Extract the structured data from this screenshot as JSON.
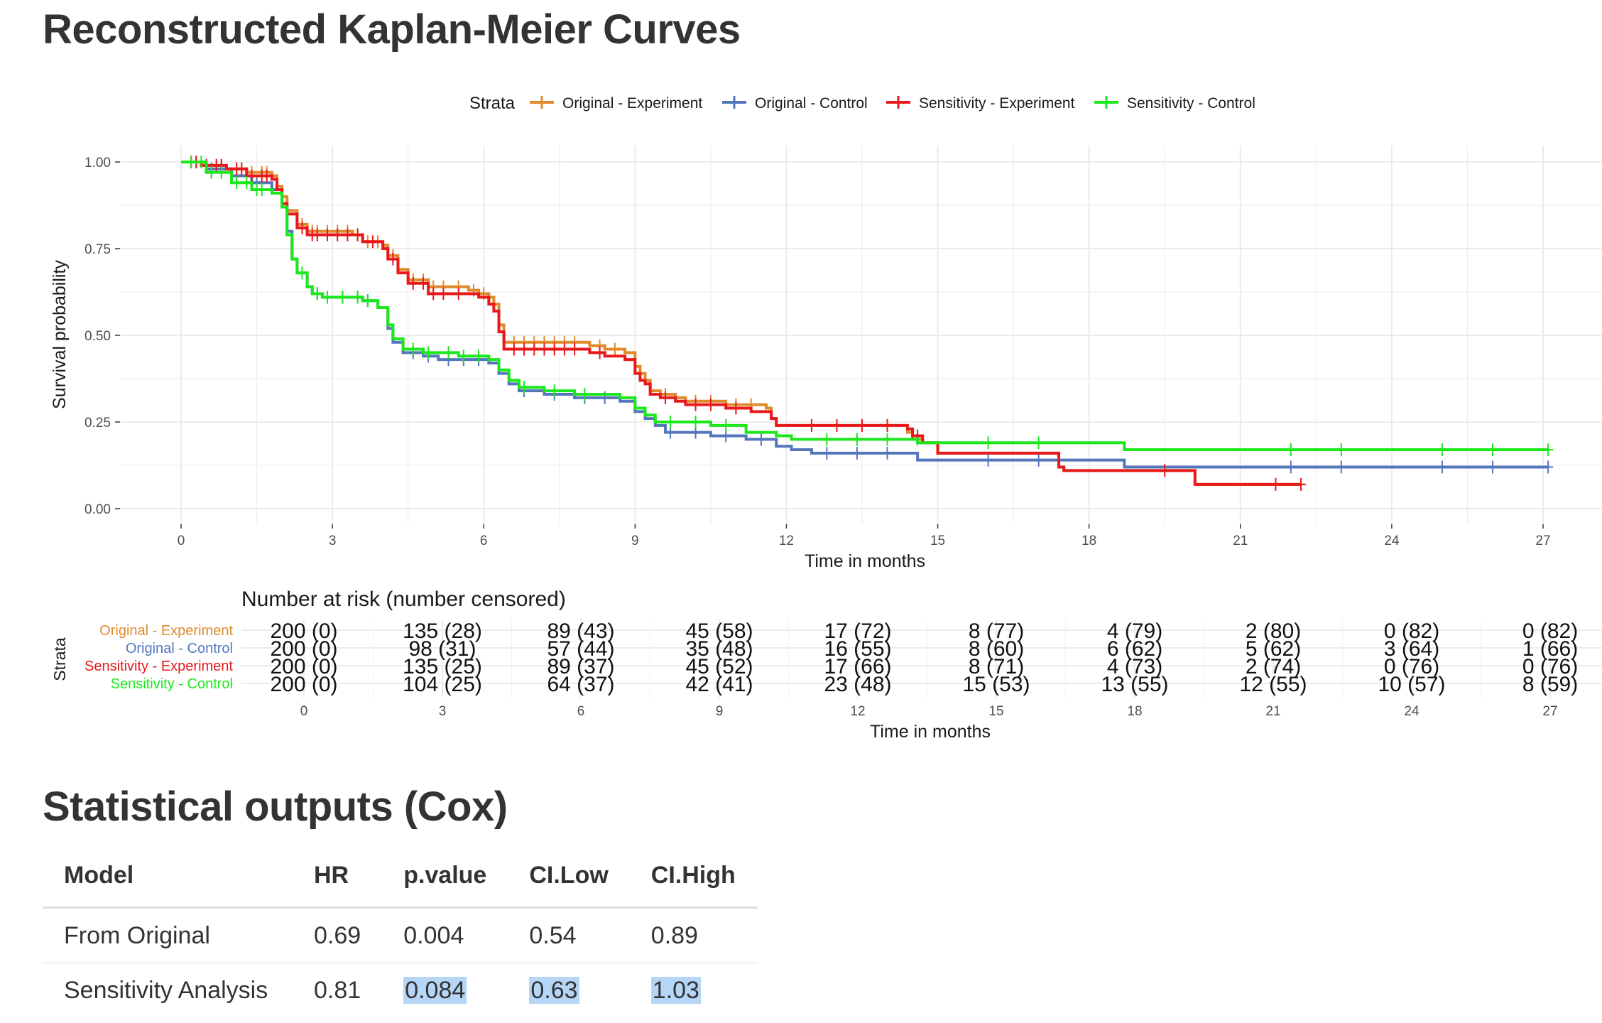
{
  "title": "Reconstructed Kaplan-Meier Curves",
  "legend": {
    "title": "Strata",
    "items": [
      "Original - Experiment",
      "Original - Control",
      "Sensitivity - Experiment",
      "Sensitivity - Control"
    ]
  },
  "colors": {
    "original_experiment": "#E08A2C",
    "original_control": "#5477BC",
    "sensitivity_experiment": "#E8191B",
    "sensitivity_control": "#1BE81B"
  },
  "chart_data": [
    {
      "type": "line",
      "subtype": "kaplan-meier step",
      "xlabel": "Time in months",
      "ylabel": "Survival probability",
      "xlim": [
        0,
        27
      ],
      "ylim": [
        0,
        1
      ],
      "x_ticks": [
        "0",
        "3",
        "6",
        "9",
        "12",
        "15",
        "18",
        "21",
        "24",
        "27"
      ],
      "y_ticks": [
        "0.00",
        "0.25",
        "0.50",
        "0.75",
        "1.00"
      ],
      "grid": true,
      "legend_position": "top",
      "series": [
        {
          "name": "Original - Experiment",
          "steps": [
            [
              0,
              1.0
            ],
            [
              0.4,
              0.99
            ],
            [
              0.9,
              0.98
            ],
            [
              1.3,
              0.97
            ],
            [
              1.8,
              0.96
            ],
            [
              1.9,
              0.93
            ],
            [
              2.0,
              0.9
            ],
            [
              2.1,
              0.86
            ],
            [
              2.3,
              0.82
            ],
            [
              2.5,
              0.8
            ],
            [
              3.4,
              0.79
            ],
            [
              3.6,
              0.77
            ],
            [
              4.0,
              0.76
            ],
            [
              4.1,
              0.73
            ],
            [
              4.3,
              0.69
            ],
            [
              4.5,
              0.66
            ],
            [
              4.9,
              0.64
            ],
            [
              5.7,
              0.63
            ],
            [
              5.9,
              0.62
            ],
            [
              6.1,
              0.61
            ],
            [
              6.2,
              0.59
            ],
            [
              6.3,
              0.53
            ],
            [
              6.4,
              0.48
            ],
            [
              8.1,
              0.47
            ],
            [
              8.4,
              0.46
            ],
            [
              8.8,
              0.45
            ],
            [
              9.0,
              0.41
            ],
            [
              9.1,
              0.39
            ],
            [
              9.2,
              0.37
            ],
            [
              9.3,
              0.34
            ],
            [
              9.5,
              0.33
            ],
            [
              9.8,
              0.32
            ],
            [
              10.0,
              0.31
            ],
            [
              10.8,
              0.3
            ],
            [
              11.6,
              0.29
            ],
            [
              11.7,
              0.26
            ],
            [
              11.8,
              0.24
            ],
            [
              14.4,
              0.22
            ],
            [
              14.5,
              0.2
            ],
            [
              14.7,
              0.19
            ],
            [
              15.0,
              0.16
            ],
            [
              17.4,
              0.12
            ],
            [
              17.5,
              0.11
            ],
            [
              20.1,
              0.07
            ]
          ],
          "end": 22.2,
          "censor_times": [
            0.2,
            0.3,
            0.5,
            0.7,
            0.8,
            1.1,
            1.2,
            1.4,
            1.6,
            1.7,
            2.4,
            2.6,
            2.7,
            2.9,
            3.1,
            3.3,
            3.5,
            3.7,
            3.9,
            4.2,
            4.6,
            4.8,
            5.0,
            5.2,
            5.5,
            5.8,
            6.0,
            6.6,
            6.8,
            7.0,
            7.2,
            7.4,
            7.6,
            7.8,
            8.3,
            8.6,
            9.6,
            10.2,
            10.5,
            11.0,
            11.3,
            12.5,
            13.0,
            13.5,
            14.0,
            14.6,
            22.2
          ],
          "at_risk": [
            "200 (0)",
            "135 (28)",
            "89 (43)",
            "45 (58)",
            "17 (72)",
            "8 (77)",
            "4 (79)",
            "2 (80)",
            "0 (82)",
            "0 (82)"
          ]
        },
        {
          "name": "Original - Control",
          "steps": [
            [
              0,
              1.0
            ],
            [
              0.5,
              0.98
            ],
            [
              1.0,
              0.96
            ],
            [
              1.4,
              0.94
            ],
            [
              1.8,
              0.92
            ],
            [
              2.0,
              0.88
            ],
            [
              2.1,
              0.8
            ],
            [
              2.2,
              0.72
            ],
            [
              2.3,
              0.68
            ],
            [
              2.5,
              0.64
            ],
            [
              2.6,
              0.62
            ],
            [
              2.8,
              0.61
            ],
            [
              3.6,
              0.6
            ],
            [
              3.9,
              0.58
            ],
            [
              4.1,
              0.52
            ],
            [
              4.2,
              0.48
            ],
            [
              4.4,
              0.45
            ],
            [
              4.8,
              0.44
            ],
            [
              5.1,
              0.43
            ],
            [
              6.1,
              0.42
            ],
            [
              6.3,
              0.39
            ],
            [
              6.5,
              0.36
            ],
            [
              6.7,
              0.34
            ],
            [
              7.2,
              0.33
            ],
            [
              7.8,
              0.32
            ],
            [
              8.7,
              0.31
            ],
            [
              9.0,
              0.28
            ],
            [
              9.2,
              0.26
            ],
            [
              9.4,
              0.24
            ],
            [
              9.6,
              0.22
            ],
            [
              10.5,
              0.21
            ],
            [
              11.2,
              0.2
            ],
            [
              11.8,
              0.18
            ],
            [
              12.1,
              0.17
            ],
            [
              12.5,
              0.16
            ],
            [
              14.6,
              0.14
            ],
            [
              18.7,
              0.12
            ]
          ],
          "end": 27.1,
          "censor_times": [
            0.3,
            0.6,
            0.8,
            1.1,
            1.5,
            2.4,
            2.7,
            2.9,
            3.2,
            3.5,
            3.7,
            4.6,
            4.9,
            5.3,
            5.6,
            5.9,
            6.8,
            7.4,
            8.0,
            8.4,
            9.7,
            10.2,
            10.8,
            11.5,
            12.8,
            13.4,
            14.0,
            16.0,
            17.0,
            22.0,
            23.0,
            25.0,
            26.0,
            27.1
          ],
          "at_risk": [
            "200 (0)",
            "98 (31)",
            "57 (44)",
            "35 (48)",
            "16 (55)",
            "8 (60)",
            "6 (62)",
            "5 (62)",
            "3 (64)",
            "1 (66)"
          ]
        },
        {
          "name": "Sensitivity - Experiment",
          "steps": [
            [
              0,
              1.0
            ],
            [
              0.4,
              0.99
            ],
            [
              0.9,
              0.98
            ],
            [
              1.3,
              0.96
            ],
            [
              1.8,
              0.95
            ],
            [
              1.9,
              0.92
            ],
            [
              2.0,
              0.88
            ],
            [
              2.1,
              0.85
            ],
            [
              2.3,
              0.81
            ],
            [
              2.5,
              0.79
            ],
            [
              3.6,
              0.77
            ],
            [
              4.0,
              0.75
            ],
            [
              4.1,
              0.72
            ],
            [
              4.3,
              0.68
            ],
            [
              4.5,
              0.65
            ],
            [
              4.9,
              0.62
            ],
            [
              5.9,
              0.61
            ],
            [
              6.1,
              0.59
            ],
            [
              6.2,
              0.57
            ],
            [
              6.3,
              0.51
            ],
            [
              6.4,
              0.46
            ],
            [
              8.1,
              0.45
            ],
            [
              8.4,
              0.44
            ],
            [
              8.8,
              0.43
            ],
            [
              9.0,
              0.39
            ],
            [
              9.1,
              0.37
            ],
            [
              9.2,
              0.36
            ],
            [
              9.3,
              0.33
            ],
            [
              9.5,
              0.32
            ],
            [
              9.8,
              0.31
            ],
            [
              10.0,
              0.3
            ],
            [
              10.8,
              0.29
            ],
            [
              11.3,
              0.28
            ],
            [
              11.7,
              0.26
            ],
            [
              11.8,
              0.24
            ],
            [
              14.4,
              0.23
            ],
            [
              14.5,
              0.21
            ],
            [
              14.7,
              0.19
            ],
            [
              15.0,
              0.16
            ],
            [
              17.4,
              0.12
            ],
            [
              17.5,
              0.11
            ],
            [
              20.1,
              0.07
            ]
          ],
          "end": 22.2,
          "censor_times": [
            0.2,
            0.3,
            0.5,
            0.7,
            0.8,
            1.1,
            1.2,
            1.4,
            1.6,
            1.7,
            2.4,
            2.6,
            2.7,
            2.9,
            3.1,
            3.3,
            3.5,
            3.8,
            4.2,
            4.6,
            4.8,
            5.0,
            5.2,
            5.5,
            6.6,
            6.8,
            7.0,
            7.2,
            7.4,
            7.6,
            7.8,
            8.3,
            9.6,
            10.2,
            10.5,
            11.0,
            12.5,
            13.0,
            13.5,
            14.0,
            14.6,
            19.5,
            21.7,
            22.2
          ],
          "at_risk": [
            "200 (0)",
            "135 (25)",
            "89 (37)",
            "45 (52)",
            "17 (66)",
            "8 (71)",
            "4 (73)",
            "2 (74)",
            "0 (76)",
            "0 (76)"
          ]
        },
        {
          "name": "Sensitivity - Control",
          "steps": [
            [
              0,
              1.0
            ],
            [
              0.5,
              0.97
            ],
            [
              1.0,
              0.94
            ],
            [
              1.4,
              0.92
            ],
            [
              1.8,
              0.91
            ],
            [
              2.0,
              0.87
            ],
            [
              2.1,
              0.79
            ],
            [
              2.2,
              0.72
            ],
            [
              2.3,
              0.68
            ],
            [
              2.5,
              0.64
            ],
            [
              2.6,
              0.62
            ],
            [
              2.8,
              0.61
            ],
            [
              3.6,
              0.6
            ],
            [
              3.9,
              0.58
            ],
            [
              4.1,
              0.53
            ],
            [
              4.2,
              0.49
            ],
            [
              4.4,
              0.46
            ],
            [
              4.8,
              0.45
            ],
            [
              5.5,
              0.44
            ],
            [
              6.1,
              0.43
            ],
            [
              6.3,
              0.4
            ],
            [
              6.5,
              0.37
            ],
            [
              6.7,
              0.35
            ],
            [
              7.2,
              0.34
            ],
            [
              7.8,
              0.33
            ],
            [
              8.7,
              0.32
            ],
            [
              9.0,
              0.29
            ],
            [
              9.2,
              0.27
            ],
            [
              9.4,
              0.25
            ],
            [
              10.5,
              0.24
            ],
            [
              11.2,
              0.22
            ],
            [
              11.8,
              0.21
            ],
            [
              12.1,
              0.2
            ],
            [
              14.6,
              0.19
            ],
            [
              18.7,
              0.17
            ]
          ],
          "end": 27.1,
          "censor_times": [
            0.2,
            0.4,
            0.6,
            0.8,
            1.1,
            1.3,
            1.5,
            1.6,
            2.4,
            2.7,
            2.9,
            3.2,
            3.5,
            3.7,
            4.6,
            4.9,
            5.3,
            5.6,
            5.9,
            6.8,
            7.4,
            8.0,
            9.7,
            10.2,
            10.8,
            12.8,
            13.4,
            14.0,
            16.0,
            17.0,
            22.0,
            23.0,
            25.0,
            26.0,
            27.1
          ],
          "at_risk": [
            "200 (0)",
            "104 (25)",
            "64 (37)",
            "42 (41)",
            "23 (48)",
            "15 (53)",
            "13 (55)",
            "12 (55)",
            "10 (57)",
            "8 (59)"
          ]
        }
      ]
    },
    {
      "type": "table",
      "title": "Number at risk (number censored)",
      "ylabel": "Strata",
      "xlabel": "Time in months",
      "x_ticks": [
        "0",
        "3",
        "6",
        "9",
        "12",
        "15",
        "18",
        "21",
        "24",
        "27"
      ]
    }
  ],
  "risk_table": {
    "title": "Number at risk (number censored)",
    "strata_label": "Strata",
    "xlabel": "Time in months"
  },
  "stats": {
    "title": "Statistical outputs (Cox)",
    "headers": [
      "Model",
      "HR",
      "p.value",
      "CI.Low",
      "CI.High"
    ],
    "rows": [
      [
        "From Original",
        "0.69",
        "0.004",
        "0.54",
        "0.89"
      ],
      [
        "Sensitivity Analysis",
        "0.81",
        "0.084",
        "0.63",
        "1.03"
      ]
    ],
    "highlighted_cells": [
      "p.value",
      "CI.Low",
      "CI.High"
    ],
    "highlight_color": "#b6d6f7"
  }
}
